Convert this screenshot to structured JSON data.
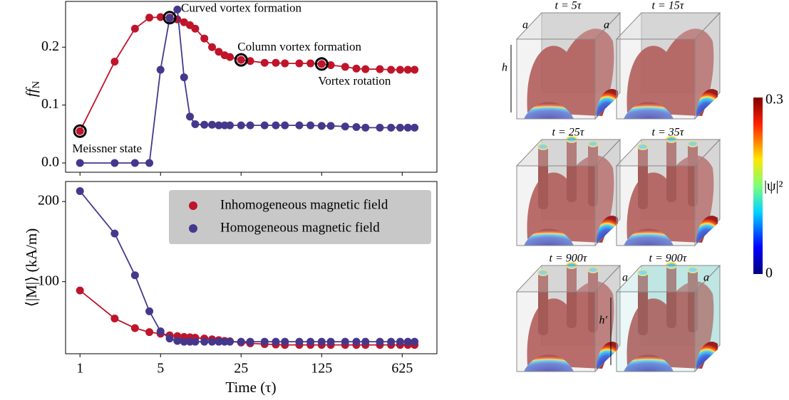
{
  "chart_data": [
    {
      "type": "line",
      "ylabel": [
        "ff",
        "N"
      ],
      "xscale": "log",
      "xlim": [
        0.75,
        1250
      ],
      "xticks": [
        1,
        5,
        25,
        125,
        625
      ],
      "xticklabels": false,
      "ylim": [
        -0.016,
        0.279
      ],
      "yticks": [
        {
          "value": 0,
          "label": "0.0"
        },
        {
          "value": 0.1,
          "label": "0.1"
        },
        {
          "value": 0.2,
          "label": "0.2"
        }
      ],
      "x": [
        1,
        2,
        3,
        4,
        5,
        6,
        7,
        8,
        9,
        10,
        12,
        14,
        16,
        18,
        20,
        25,
        30,
        40,
        50,
        60,
        80,
        100,
        125,
        150,
        200,
        250,
        300,
        400,
        500,
        600,
        700,
        800
      ],
      "series": [
        {
          "color": "#c0142a",
          "values": [
            0.055,
            0.175,
            0.232,
            0.251,
            0.252,
            0.251,
            0.248,
            0.243,
            0.238,
            0.232,
            0.215,
            0.2,
            0.192,
            0.186,
            0.183,
            0.178,
            0.176,
            0.173,
            0.173,
            0.172,
            0.172,
            0.172,
            0.171,
            0.169,
            0.166,
            0.163,
            0.162,
            0.162,
            0.161,
            0.161,
            0.161,
            0.161
          ]
        },
        {
          "color": "#45388c",
          "values": [
            0,
            0,
            0,
            0,
            0.161,
            0.25,
            0.265,
            0.148,
            0.08,
            0.067,
            0.066,
            0.066,
            0.065,
            0.065,
            0.065,
            0.065,
            0.065,
            0.065,
            0.065,
            0.065,
            0.065,
            0.065,
            0.064,
            0.064,
            0.063,
            0.062,
            0.061,
            0.061,
            0.061,
            0.061,
            0.061,
            0.061
          ]
        }
      ],
      "annotations": [
        {
          "text": "Meissner state",
          "x": 1,
          "y": 0.055
        },
        {
          "text": "Curved vortex formation",
          "x": 6,
          "y": 0.251
        },
        {
          "text": "Column vortex formation",
          "x": 25,
          "y": 0.178
        },
        {
          "text": "Vortex rotation",
          "x": 125,
          "y": 0.171
        }
      ]
    },
    {
      "type": "line",
      "ylabel": "⟨|M|⟩ (kA/m)",
      "xlabel": "Time (τ)",
      "xscale": "log",
      "xlim": [
        0.75,
        1250
      ],
      "xticks": [
        1,
        5,
        25,
        125,
        625
      ],
      "ylim": [
        10,
        225
      ],
      "yticks": [
        100,
        200
      ],
      "legend": "upper right",
      "x": [
        1,
        2,
        3,
        4,
        5,
        6,
        7,
        8,
        9,
        10,
        12,
        14,
        16,
        18,
        20,
        25,
        30,
        40,
        50,
        60,
        80,
        100,
        125,
        150,
        200,
        250,
        300,
        400,
        500,
        600,
        700,
        800
      ],
      "series": [
        {
          "name": "Inhomogeneous magnetic field",
          "color": "#c0142a",
          "values": [
            89,
            54,
            42,
            37,
            35,
            33,
            32,
            31,
            30.5,
            30,
            29,
            28,
            27,
            26,
            25.5,
            24,
            23,
            22,
            21.5,
            21,
            21,
            21,
            21,
            21,
            21,
            21,
            21,
            21,
            21,
            21,
            21,
            21
          ]
        },
        {
          "name": "Homogeneous magnetic field",
          "color": "#45388c",
          "values": [
            213,
            160,
            108,
            63,
            38,
            29,
            26,
            25,
            25,
            25,
            25,
            25,
            25,
            25,
            25,
            25,
            25,
            25,
            25,
            25,
            25,
            25,
            25,
            25,
            25,
            25,
            25,
            25,
            25,
            25,
            25,
            25
          ]
        }
      ]
    }
  ],
  "panels": [
    {
      "time": "t = 5τ",
      "labels": [
        "a",
        "a",
        "h"
      ]
    },
    {
      "time": "t = 15τ"
    },
    {
      "time": "t = 25τ"
    },
    {
      "time": "t = 35τ"
    },
    {
      "time": "t = 900τ"
    },
    {
      "time": "t = 900τ",
      "labels": [
        "a",
        "a",
        "h′"
      ]
    }
  ],
  "colorbar": {
    "label": "|ψ|²",
    "ticks": [
      0,
      0.3
    ]
  }
}
